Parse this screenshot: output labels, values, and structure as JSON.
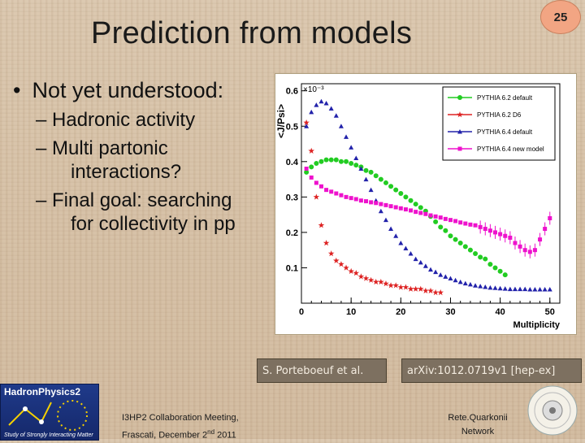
{
  "slide": {
    "title": "Prediction from models",
    "number": "25"
  },
  "bullets": {
    "main": "Not yet understood:",
    "subs": [
      {
        "line1": "Hadronic activity",
        "line2": ""
      },
      {
        "line1": "Multi partonic",
        "line2": "interactions?"
      },
      {
        "line1": "Final goal: searching",
        "line2": "for collectivity in pp"
      }
    ]
  },
  "citation": {
    "authors": "S. Porteboeuf et al.",
    "arxiv": "arXiv:1012.0719v1 [hep-ex]"
  },
  "footer": {
    "meeting_line1": "I3HP2 Collaboration Meeting,",
    "meeting_line2_a": "Frascati, December 2",
    "meeting_line2_sup": "nd",
    "meeting_line2_b": " 2011",
    "network_line1": "Rete.Quarkonii",
    "network_line2": "Network"
  },
  "logo_left": {
    "title": "HadronPhysics2",
    "subtitle": "Study of Strongly Interacting Matter"
  },
  "chart_data": {
    "type": "scatter",
    "ylabel": "<J/Psi>",
    "y_multiplier": "×10⁻³",
    "xlabel": "Multiplicity",
    "xlim": [
      0,
      52
    ],
    "ylim": [
      0,
      0.62
    ],
    "xticks": [
      "0",
      "10",
      "20",
      "30",
      "40",
      "50"
    ],
    "yticks": [
      "0.1",
      "0.2",
      "0.3",
      "0.4",
      "0.5",
      "0.6"
    ],
    "legend_position": "top-right",
    "series": [
      {
        "name": "PYTHIA 6.2 default",
        "color": "#22cc22",
        "marker": "circle",
        "x": [
          1,
          2,
          3,
          4,
          5,
          6,
          7,
          8,
          9,
          10,
          11,
          12,
          13,
          14,
          15,
          16,
          17,
          18,
          19,
          20,
          21,
          22,
          23,
          24,
          25,
          26,
          27,
          28,
          29,
          30,
          31,
          32,
          33,
          34,
          35,
          36,
          37,
          38,
          39,
          40,
          41
        ],
        "y": [
          0.37,
          0.385,
          0.395,
          0.4,
          0.405,
          0.405,
          0.405,
          0.4,
          0.4,
          0.395,
          0.39,
          0.385,
          0.375,
          0.37,
          0.36,
          0.35,
          0.34,
          0.33,
          0.32,
          0.31,
          0.3,
          0.29,
          0.28,
          0.27,
          0.26,
          0.245,
          0.23,
          0.215,
          0.205,
          0.19,
          0.18,
          0.17,
          0.16,
          0.15,
          0.14,
          0.13,
          0.125,
          0.11,
          0.1,
          0.09,
          0.08
        ]
      },
      {
        "name": "PYTHIA 6.2 D6",
        "color": "#dd2222",
        "marker": "star",
        "x": [
          1,
          2,
          3,
          4,
          5,
          6,
          7,
          8,
          9,
          10,
          11,
          12,
          13,
          14,
          15,
          16,
          17,
          18,
          19,
          20,
          21,
          22,
          23,
          24,
          25,
          26,
          27,
          28
        ],
        "y": [
          0.51,
          0.43,
          0.3,
          0.22,
          0.17,
          0.14,
          0.12,
          0.11,
          0.1,
          0.09,
          0.085,
          0.075,
          0.07,
          0.065,
          0.06,
          0.06,
          0.055,
          0.05,
          0.05,
          0.045,
          0.045,
          0.04,
          0.04,
          0.04,
          0.035,
          0.035,
          0.03,
          0.03
        ]
      },
      {
        "name": "PYTHIA 6.4 default",
        "color": "#2222aa",
        "marker": "triangle",
        "x": [
          1,
          2,
          3,
          4,
          5,
          6,
          7,
          8,
          9,
          10,
          11,
          12,
          13,
          14,
          15,
          16,
          17,
          18,
          19,
          20,
          21,
          22,
          23,
          24,
          25,
          26,
          27,
          28,
          29,
          30,
          31,
          32,
          33,
          34,
          35,
          36,
          37,
          38,
          39,
          40,
          41,
          42,
          43,
          44,
          45,
          46,
          47,
          48,
          49,
          50
        ],
        "y": [
          0.5,
          0.54,
          0.56,
          0.57,
          0.565,
          0.55,
          0.53,
          0.5,
          0.47,
          0.44,
          0.41,
          0.38,
          0.35,
          0.32,
          0.29,
          0.26,
          0.235,
          0.21,
          0.19,
          0.17,
          0.155,
          0.14,
          0.125,
          0.115,
          0.105,
          0.095,
          0.088,
          0.08,
          0.075,
          0.07,
          0.065,
          0.06,
          0.056,
          0.053,
          0.05,
          0.048,
          0.046,
          0.044,
          0.043,
          0.042,
          0.041,
          0.04,
          0.04,
          0.04,
          0.04,
          0.039,
          0.039,
          0.039,
          0.039,
          0.039
        ]
      },
      {
        "name": "PYTHIA 6.4 new model",
        "color": "#ee11cc",
        "marker": "square",
        "x": [
          1,
          2,
          3,
          4,
          5,
          6,
          7,
          8,
          9,
          10,
          11,
          12,
          13,
          14,
          15,
          16,
          17,
          18,
          19,
          20,
          21,
          22,
          23,
          24,
          25,
          26,
          27,
          28,
          29,
          30,
          31,
          32,
          33,
          34,
          35,
          36,
          37,
          38,
          39,
          40,
          41,
          42,
          43,
          44,
          45,
          46,
          47,
          48,
          49,
          50
        ],
        "y": [
          0.38,
          0.355,
          0.34,
          0.33,
          0.32,
          0.315,
          0.31,
          0.305,
          0.3,
          0.297,
          0.294,
          0.29,
          0.288,
          0.285,
          0.283,
          0.28,
          0.277,
          0.274,
          0.271,
          0.268,
          0.265,
          0.262,
          0.258,
          0.255,
          0.252,
          0.248,
          0.245,
          0.242,
          0.238,
          0.235,
          0.232,
          0.228,
          0.225,
          0.222,
          0.22,
          0.215,
          0.21,
          0.205,
          0.2,
          0.195,
          0.19,
          0.185,
          0.17,
          0.16,
          0.15,
          0.145,
          0.15,
          0.18,
          0.21,
          0.24
        ]
      }
    ]
  }
}
